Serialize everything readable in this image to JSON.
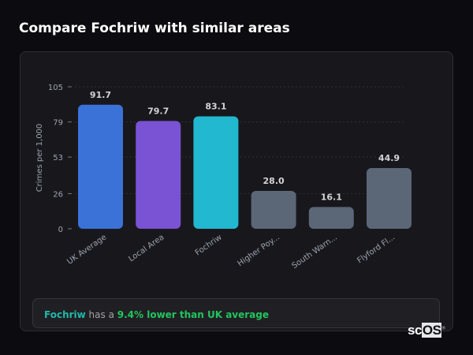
{
  "title": "Compare Fochriw with similar areas",
  "chart_data": {
    "type": "bar",
    "categories": [
      "UK Average",
      "Local Area",
      "Fochriw",
      "Higher Poy...",
      "South Warn...",
      "Flyford Fl..."
    ],
    "values": [
      91.7,
      79.7,
      83.1,
      28.0,
      16.1,
      44.9
    ],
    "value_labels": [
      "91.7",
      "79.7",
      "83.1",
      "28.0",
      "16.1",
      "44.9"
    ],
    "colors": [
      "#3a72d8",
      "#7a52d4",
      "#21b8d0",
      "#5b6677",
      "#5b6677",
      "#5b6677"
    ],
    "ylabel": "Crimes per 1,000",
    "xlabel": "",
    "ylim": [
      0,
      105
    ],
    "yticks": [
      0,
      26,
      53,
      79,
      105
    ],
    "grid": true
  },
  "insight": {
    "area": "Fochriw",
    "middle": " has a ",
    "comparison": "9.4% lower than UK average"
  },
  "logo": {
    "text_a": "sc",
    "text_b": "OS",
    "mark": "®"
  }
}
